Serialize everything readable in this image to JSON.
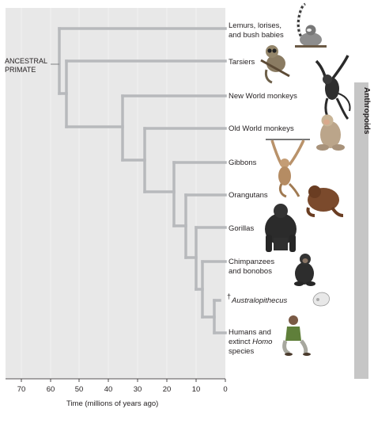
{
  "root_label": [
    "ANCESTRAL",
    "PRIMATE"
  ],
  "clade_label": "Anthropoids",
  "axis": {
    "label": "Time (millions of years ago)",
    "ticks": [
      "70",
      "60",
      "50",
      "40",
      "30",
      "20",
      "10",
      "0"
    ]
  },
  "taxa": [
    {
      "name": "lemurs",
      "lines": [
        {
          "t": "Lemurs, lorises,"
        },
        {
          "t": "and bush babies"
        }
      ]
    },
    {
      "name": "tarsiers",
      "lines": [
        {
          "t": "Tarsiers"
        }
      ]
    },
    {
      "name": "new-world-monkeys",
      "lines": [
        {
          "t": "New World monkeys"
        }
      ]
    },
    {
      "name": "old-world-monkeys",
      "lines": [
        {
          "t": "Old World monkeys"
        }
      ]
    },
    {
      "name": "gibbons",
      "lines": [
        {
          "t": "Gibbons"
        }
      ]
    },
    {
      "name": "orangutans",
      "lines": [
        {
          "t": "Orangutans"
        }
      ]
    },
    {
      "name": "gorillas",
      "lines": [
        {
          "t": "Gorillas"
        }
      ]
    },
    {
      "name": "chimpanzees",
      "lines": [
        {
          "t": "Chimpanzees"
        },
        {
          "t": "and bonobos"
        }
      ]
    },
    {
      "name": "australopithecus",
      "extinct": true,
      "lines": [
        {
          "t": "Australopithecus",
          "italic": true
        }
      ]
    },
    {
      "name": "humans",
      "lines": [
        {
          "t": "Humans and"
        },
        {
          "t": "extinct "
        },
        {
          "t": "species"
        }
      ],
      "italic_word": "Homo"
    }
  ],
  "colors": {
    "panel": "#e8e8e8",
    "branch": "#b7b9bc",
    "clade_bar": "#c6c6c6",
    "text": "#231f20"
  },
  "icons": [
    "lemur-icon",
    "tarsier-icon",
    "spider-monkey-icon",
    "macaque-icon",
    "gibbon-icon",
    "orangutan-icon",
    "gorilla-icon",
    "chimpanzee-icon",
    "australopithecus-skull-icon",
    "human-icon"
  ]
}
